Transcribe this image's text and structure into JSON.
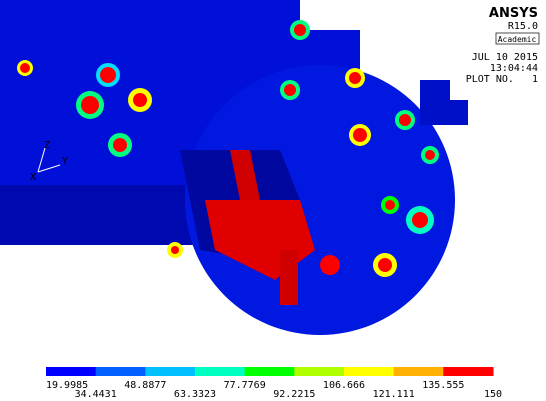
{
  "header": {
    "brand": "ANSYS",
    "release": "R15.0",
    "license": "Academic",
    "date": "JUL 10 2015",
    "time": "13:04:44",
    "plot": "PLOT NO.   1"
  },
  "triad": {
    "z": "Z",
    "y": "Y",
    "x": "X"
  },
  "legend": {
    "colors": [
      "#0000ff",
      "#0060ff",
      "#00c0ff",
      "#00ffc0",
      "#00ff00",
      "#b0ff00",
      "#ffff00",
      "#ffb000",
      "#ff0000"
    ],
    "labels": [
      "19.9985",
      "34.4431",
      "48.8877",
      "63.3323",
      "77.7769",
      "92.2215",
      "106.666",
      "121.111",
      "135.555",
      "150"
    ]
  }
}
